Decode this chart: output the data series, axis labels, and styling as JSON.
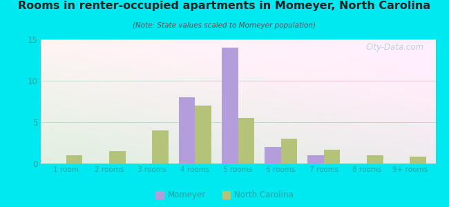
{
  "title": "Rooms in renter-occupied apartments in Momeyer, North Carolina",
  "subtitle": "(Note: State values scaled to Momeyer population)",
  "categories": [
    "1 room",
    "2 rooms",
    "3 rooms",
    "4 rooms",
    "5 rooms",
    "6 rooms",
    "7 rooms",
    "8 rooms",
    "9+ rooms"
  ],
  "momeyer_values": [
    0,
    0,
    0,
    8,
    14,
    2,
    1,
    0,
    0
  ],
  "nc_values": [
    1,
    1.5,
    4,
    7,
    5.5,
    3,
    1.7,
    1,
    0.8
  ],
  "momeyer_color": "#b39ddb",
  "nc_color": "#b5c27a",
  "bar_width": 0.38,
  "ylim": [
    0,
    15
  ],
  "yticks": [
    0,
    5,
    10,
    15
  ],
  "outer_bg": "#00e8f0",
  "watermark": "City-Data.com",
  "legend_momeyer": "Momeyer",
  "legend_nc": "North Carolina",
  "tick_color": "#2aa0a0",
  "title_color": "#222222",
  "subtitle_color": "#555555"
}
